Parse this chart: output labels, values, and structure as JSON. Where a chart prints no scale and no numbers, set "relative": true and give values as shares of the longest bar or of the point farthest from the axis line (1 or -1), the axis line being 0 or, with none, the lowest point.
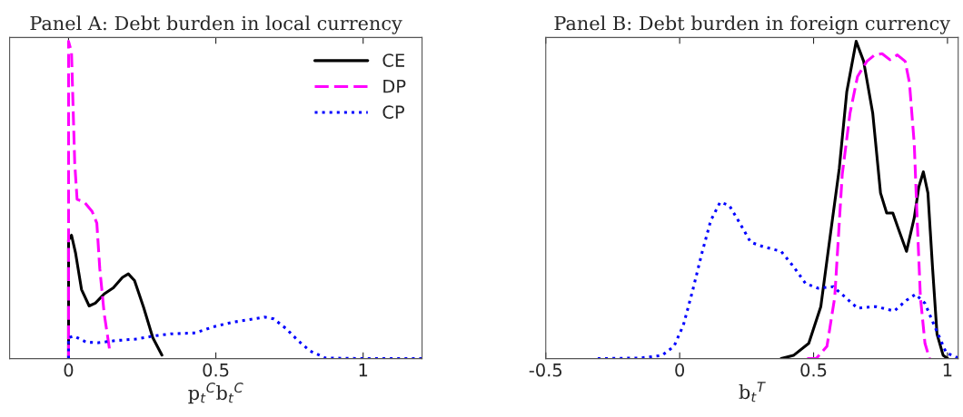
{
  "chart_data": [
    {
      "type": "line",
      "title": "Panel A: Debt burden in local currency",
      "xlabel": "p$_{t}$$^{C}$b$_{t}$$^{C}$",
      "relative": true,
      "xlim": [
        -0.2,
        1.2
      ],
      "xticks": [
        0,
        0.5,
        1
      ],
      "grid": false,
      "legend": "top right",
      "marker": "none",
      "series": [
        {
          "name": "CE",
          "color": "#000000",
          "line_style": "solid",
          "x": [
            0,
            0,
            0.01,
            0.024,
            0.044,
            0.07,
            0.091,
            0.121,
            0.152,
            0.183,
            0.203,
            0.224,
            0.255,
            0.286,
            0.317
          ],
          "values": [
            0,
            0.374,
            0.389,
            0.332,
            0.218,
            0.166,
            0.175,
            0.204,
            0.223,
            0.256,
            0.267,
            0.246,
            0.161,
            0.066,
            0.011
          ]
        },
        {
          "name": "DP",
          "color": "#ff00ff",
          "line_style": "dashed",
          "x": [
            0,
            0,
            0.01,
            0.015,
            0.021,
            0.029,
            0.054,
            0.08,
            0.096,
            0.106,
            0.121,
            0.14
          ],
          "values": [
            0,
            1.0,
            0.967,
            0.806,
            0.616,
            0.502,
            0.493,
            0.464,
            0.427,
            0.284,
            0.142,
            0.024
          ]
        },
        {
          "name": "CP",
          "color": "#0000ff",
          "line_style": "dotted",
          "x": [
            0,
            0,
            0.018,
            0.06,
            0.101,
            0.162,
            0.234,
            0.286,
            0.347,
            0.43,
            0.491,
            0.553,
            0.615,
            0.666,
            0.697,
            0.738,
            0.779,
            0.82,
            0.872,
            1.005,
            1.2
          ],
          "values": [
            0,
            0.066,
            0.071,
            0.052,
            0.05,
            0.057,
            0.062,
            0.071,
            0.078,
            0.081,
            0.1,
            0.114,
            0.123,
            0.131,
            0.125,
            0.095,
            0.057,
            0.024,
            0.002,
            0,
            0
          ]
        }
      ]
    },
    {
      "type": "line",
      "title": "Panel B: Debt burden in foreign currency",
      "xlabel": "b$_{t}$$^{T}$",
      "relative": true,
      "xlim": [
        -0.5,
        1.04
      ],
      "xticks": [
        -0.5,
        0,
        0.5,
        1
      ],
      "grid": false,
      "legend": false,
      "marker": "none",
      "series": [
        {
          "color": "#000000",
          "line_style": "solid",
          "x": [
            0.379,
            0.425,
            0.482,
            0.527,
            0.562,
            0.596,
            0.624,
            0.659,
            0.687,
            0.721,
            0.75,
            0.773,
            0.796,
            0.818,
            0.847,
            0.876,
            0.893,
            0.91,
            0.927,
            0.944,
            0.961,
            0.984,
            1.001
          ],
          "values": [
            0,
            0.01,
            0.048,
            0.164,
            0.386,
            0.599,
            0.841,
            1.0,
            0.937,
            0.773,
            0.522,
            0.459,
            0.459,
            0.406,
            0.338,
            0.444,
            0.541,
            0.589,
            0.522,
            0.29,
            0.077,
            0.01,
            0
          ]
        },
        {
          "color": "#ff00ff",
          "line_style": "dashed",
          "x": [
            0.476,
            0.51,
            0.55,
            0.579,
            0.607,
            0.636,
            0.664,
            0.699,
            0.728,
            0.756,
            0.785,
            0.813,
            0.842,
            0.858,
            0.876,
            0.887,
            0.899,
            0.916,
            0.933
          ],
          "values": [
            0,
            0,
            0.039,
            0.193,
            0.58,
            0.773,
            0.889,
            0.937,
            0.957,
            0.961,
            0.942,
            0.957,
            0.937,
            0.87,
            0.676,
            0.435,
            0.193,
            0.048,
            0
          ]
        },
        {
          "color": "#0000ff",
          "line_style": "dotted",
          "x": [
            -0.306,
            -0.146,
            -0.066,
            -0.021,
            0.014,
            0.048,
            0.082,
            0.116,
            0.151,
            0.185,
            0.219,
            0.265,
            0.311,
            0.379,
            0.425,
            0.47,
            0.516,
            0.573,
            0.619,
            0.664,
            0.733,
            0.801,
            0.847,
            0.881,
            0.916,
            0.95,
            0.995,
            1.04
          ],
          "values": [
            0,
            0.002,
            0.01,
            0.039,
            0.106,
            0.213,
            0.329,
            0.435,
            0.493,
            0.483,
            0.435,
            0.367,
            0.353,
            0.338,
            0.29,
            0.237,
            0.222,
            0.227,
            0.193,
            0.159,
            0.164,
            0.15,
            0.184,
            0.203,
            0.174,
            0.106,
            0.019,
            0.002
          ]
        }
      ]
    }
  ]
}
